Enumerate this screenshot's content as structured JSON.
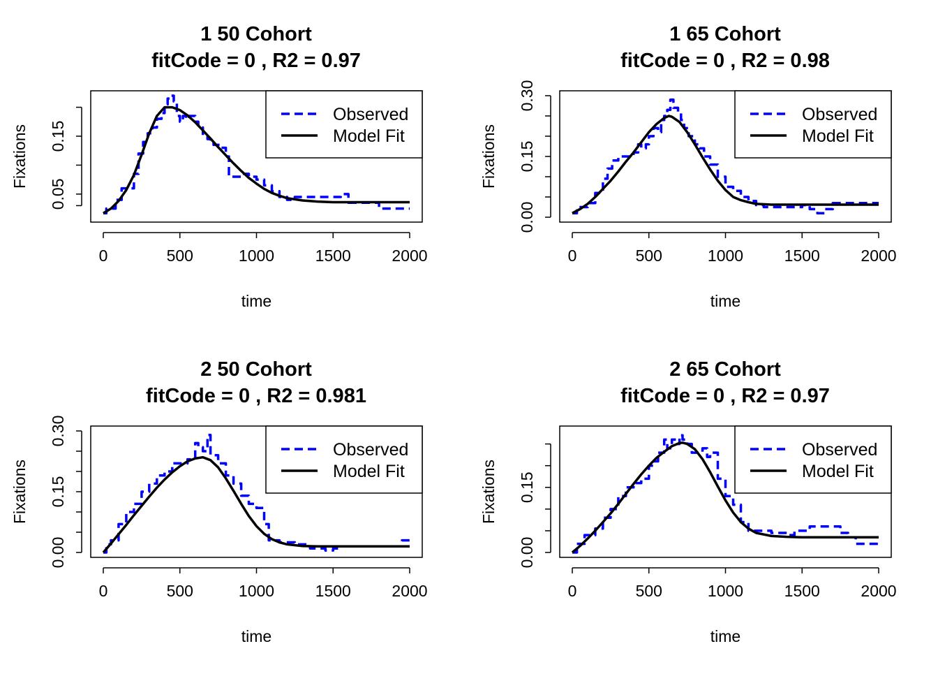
{
  "chart_data": [
    {
      "type": "line",
      "title": "1 50 Cohort",
      "subtitle": "fitCode =  0 , R2 =  0.97",
      "xlabel": "time",
      "ylabel": "Fixations",
      "xlim": [
        0,
        2000
      ],
      "ylim": [
        0.01,
        0.22
      ],
      "xticks": [
        0,
        500,
        1000,
        1500,
        2000
      ],
      "yticks": [
        0.03,
        0.05,
        0.1,
        0.15,
        0.2
      ],
      "yticklabels": [
        {
          "v": 0.05,
          "t": "0.05"
        },
        {
          "v": 0.15,
          "t": "0.15"
        }
      ],
      "legend": {
        "position": "top-right",
        "entries": [
          "Observed",
          "Model Fit"
        ]
      },
      "series": [
        {
          "name": "Observed",
          "color": "#0000ff",
          "style": "dashed",
          "x": [
            0,
            20,
            50,
            80,
            120,
            150,
            200,
            230,
            260,
            290,
            320,
            350,
            380,
            400,
            420,
            440,
            460,
            480,
            500,
            520,
            540,
            560,
            600,
            620,
            650,
            680,
            700,
            720,
            760,
            800,
            820,
            840,
            870,
            900,
            950,
            1000,
            1050,
            1100,
            1150,
            1200,
            1250,
            1300,
            1350,
            1400,
            1450,
            1500,
            1550,
            1600,
            1650,
            1700,
            1750,
            1800,
            1850,
            1900,
            1950,
            2000
          ],
          "y": [
            0.017,
            0.025,
            0.025,
            0.04,
            0.06,
            0.06,
            0.085,
            0.12,
            0.14,
            0.155,
            0.165,
            0.18,
            0.19,
            0.205,
            0.215,
            0.22,
            0.21,
            0.185,
            0.175,
            0.185,
            0.18,
            0.185,
            0.175,
            0.165,
            0.15,
            0.145,
            0.14,
            0.135,
            0.13,
            0.115,
            0.08,
            0.08,
            0.08,
            0.085,
            0.08,
            0.075,
            0.065,
            0.055,
            0.045,
            0.04,
            0.045,
            0.045,
            0.045,
            0.045,
            0.045,
            0.045,
            0.05,
            0.035,
            0.035,
            0.035,
            0.035,
            0.025,
            0.025,
            0.025,
            0.025,
            0.025
          ]
        },
        {
          "name": "Model Fit",
          "color": "#000000",
          "style": "solid",
          "x": [
            0,
            50,
            100,
            150,
            200,
            250,
            300,
            350,
            400,
            450,
            500,
            550,
            600,
            650,
            700,
            750,
            800,
            850,
            900,
            950,
            1000,
            1050,
            1100,
            1150,
            1200,
            1300,
            1400,
            1500,
            1600,
            1800,
            2000
          ],
          "y": [
            0.017,
            0.025,
            0.038,
            0.057,
            0.083,
            0.118,
            0.155,
            0.185,
            0.2,
            0.2,
            0.195,
            0.186,
            0.174,
            0.16,
            0.146,
            0.131,
            0.117,
            0.103,
            0.09,
            0.078,
            0.068,
            0.059,
            0.052,
            0.047,
            0.043,
            0.039,
            0.037,
            0.036,
            0.036,
            0.036,
            0.036
          ]
        }
      ]
    },
    {
      "type": "line",
      "title": "1 65 Cohort",
      "subtitle": "fitCode =  0 , R2 =  0.98",
      "xlabel": "time",
      "ylabel": "Fixations",
      "xlim": [
        0,
        2000
      ],
      "ylim": [
        0,
        0.3
      ],
      "xticks": [
        0,
        500,
        1000,
        1500,
        2000
      ],
      "yticks": [
        0,
        0.05,
        0.1,
        0.15,
        0.2,
        0.25,
        0.3
      ],
      "yticklabels": [
        {
          "v": 0,
          "t": "0.00"
        },
        {
          "v": 0.15,
          "t": "0.15"
        },
        {
          "v": 0.3,
          "t": "0.30"
        }
      ],
      "legend": {
        "position": "top-right",
        "entries": [
          "Observed",
          "Model Fit"
        ]
      },
      "series": [
        {
          "name": "Observed",
          "color": "#0000ff",
          "style": "dashed",
          "x": [
            0,
            30,
            100,
            150,
            200,
            230,
            260,
            300,
            350,
            400,
            430,
            450,
            480,
            500,
            530,
            560,
            580,
            600,
            620,
            640,
            660,
            690,
            710,
            730,
            760,
            800,
            830,
            860,
            900,
            950,
            1000,
            1050,
            1100,
            1150,
            1200,
            1250,
            1300,
            1400,
            1500,
            1550,
            1600,
            1650,
            1700,
            1800,
            1900,
            2000
          ],
          "y": [
            0.01,
            0.025,
            0.035,
            0.06,
            0.095,
            0.12,
            0.14,
            0.15,
            0.15,
            0.16,
            0.18,
            0.17,
            0.18,
            0.2,
            0.22,
            0.21,
            0.24,
            0.25,
            0.265,
            0.29,
            0.27,
            0.26,
            0.24,
            0.22,
            0.2,
            0.18,
            0.17,
            0.15,
            0.13,
            0.1,
            0.075,
            0.065,
            0.05,
            0.04,
            0.03,
            0.025,
            0.025,
            0.025,
            0.03,
            0.02,
            0.01,
            0.02,
            0.035,
            0.035,
            0.035,
            0.035
          ]
        },
        {
          "name": "Model Fit",
          "color": "#000000",
          "style": "solid",
          "x": [
            0,
            50,
            100,
            150,
            200,
            250,
            300,
            350,
            400,
            450,
            500,
            550,
            600,
            630,
            650,
            700,
            750,
            800,
            850,
            900,
            950,
            1000,
            1050,
            1100,
            1150,
            1200,
            1300,
            1400,
            1500,
            1700,
            2000
          ],
          "y": [
            0.01,
            0.02,
            0.033,
            0.05,
            0.07,
            0.09,
            0.113,
            0.137,
            0.16,
            0.185,
            0.21,
            0.23,
            0.245,
            0.25,
            0.248,
            0.235,
            0.21,
            0.18,
            0.148,
            0.118,
            0.09,
            0.067,
            0.05,
            0.042,
            0.037,
            0.033,
            0.031,
            0.031,
            0.031,
            0.031,
            0.031
          ]
        }
      ]
    },
    {
      "type": "line",
      "title": "2 50 Cohort",
      "subtitle": "fitCode =  0 , R2 =  0.981",
      "xlabel": "time",
      "ylabel": "Fixations",
      "xlim": [
        0,
        2000
      ],
      "ylim": [
        0,
        0.3
      ],
      "xticks": [
        0,
        500,
        1000,
        1500,
        2000
      ],
      "yticks": [
        0,
        0.05,
        0.1,
        0.15,
        0.2,
        0.25,
        0.3
      ],
      "yticklabels": [
        {
          "v": 0,
          "t": "0.00"
        },
        {
          "v": 0.15,
          "t": "0.15"
        },
        {
          "v": 0.3,
          "t": "0.30"
        }
      ],
      "legend": {
        "position": "top-right",
        "entries": [
          "Observed",
          "Model Fit"
        ]
      },
      "series": [
        {
          "name": "Observed",
          "color": "#0000ff",
          "style": "dashed",
          "x": [
            0,
            20,
            50,
            100,
            150,
            200,
            250,
            300,
            350,
            400,
            450,
            500,
            550,
            600,
            620,
            650,
            680,
            700,
            750,
            800,
            850,
            900,
            950,
            1000,
            1050,
            1080,
            1100,
            1150,
            1200,
            1250,
            1300,
            1350,
            1400,
            1450,
            1500,
            1550,
            1600,
            1700,
            1800,
            1900,
            1950,
            2000
          ],
          "y": [
            0,
            0.02,
            0.03,
            0.07,
            0.1,
            0.12,
            0.15,
            0.17,
            0.19,
            0.2,
            0.22,
            0.22,
            0.23,
            0.27,
            0.26,
            0.25,
            0.29,
            0.24,
            0.22,
            0.19,
            0.17,
            0.14,
            0.12,
            0.11,
            0.07,
            0.03,
            0.03,
            0.025,
            0.025,
            0.02,
            0.02,
            0.01,
            0.01,
            0.005,
            0.01,
            0.015,
            0.015,
            0.015,
            0.015,
            0.015,
            0.03,
            0.03
          ]
        },
        {
          "name": "Model Fit",
          "color": "#000000",
          "style": "solid",
          "x": [
            0,
            50,
            100,
            150,
            200,
            250,
            300,
            350,
            400,
            450,
            500,
            550,
            600,
            650,
            700,
            750,
            800,
            850,
            900,
            950,
            1000,
            1050,
            1100,
            1150,
            1200,
            1300,
            1400,
            1500,
            1700,
            2000
          ],
          "y": [
            0.0,
            0.022,
            0.045,
            0.068,
            0.092,
            0.115,
            0.138,
            0.16,
            0.18,
            0.198,
            0.213,
            0.225,
            0.232,
            0.235,
            0.228,
            0.21,
            0.183,
            0.152,
            0.12,
            0.09,
            0.065,
            0.046,
            0.033,
            0.025,
            0.02,
            0.016,
            0.015,
            0.015,
            0.015,
            0.015
          ]
        }
      ]
    },
    {
      "type": "line",
      "title": "2 65 Cohort",
      "subtitle": "fitCode =  0 , R2 =  0.97",
      "xlabel": "time",
      "ylabel": "Fixations",
      "xlim": [
        0,
        2000
      ],
      "ylim": [
        0,
        0.28
      ],
      "xticks": [
        0,
        500,
        1000,
        1500,
        2000
      ],
      "yticks": [
        0,
        0.05,
        0.1,
        0.15,
        0.2,
        0.25
      ],
      "yticklabels": [
        {
          "v": 0,
          "t": "0.00"
        },
        {
          "v": 0.15,
          "t": "0.15"
        }
      ],
      "legend": {
        "position": "top-right",
        "entries": [
          "Observed",
          "Model Fit"
        ]
      },
      "series": [
        {
          "name": "Observed",
          "color": "#0000ff",
          "style": "dashed",
          "x": [
            0,
            30,
            80,
            150,
            200,
            250,
            300,
            350,
            400,
            450,
            500,
            530,
            560,
            600,
            620,
            650,
            680,
            700,
            720,
            750,
            780,
            800,
            850,
            880,
            900,
            950,
            1000,
            1050,
            1100,
            1150,
            1200,
            1300,
            1400,
            1450,
            1500,
            1550,
            1600,
            1700,
            1750,
            1800,
            1850,
            1900,
            2000
          ],
          "y": [
            0,
            0.02,
            0.04,
            0.055,
            0.08,
            0.1,
            0.13,
            0.15,
            0.16,
            0.17,
            0.2,
            0.21,
            0.23,
            0.26,
            0.24,
            0.26,
            0.25,
            0.27,
            0.26,
            0.25,
            0.23,
            0.23,
            0.24,
            0.22,
            0.23,
            0.17,
            0.13,
            0.11,
            0.07,
            0.05,
            0.05,
            0.045,
            0.04,
            0.05,
            0.05,
            0.06,
            0.06,
            0.06,
            0.045,
            0.035,
            0.02,
            0.02,
            0.02
          ]
        },
        {
          "name": "Model Fit",
          "color": "#000000",
          "style": "solid",
          "x": [
            0,
            50,
            100,
            150,
            200,
            250,
            300,
            350,
            400,
            450,
            500,
            550,
            600,
            650,
            700,
            720,
            750,
            800,
            850,
            900,
            950,
            1000,
            1050,
            1100,
            1150,
            1200,
            1300,
            1400,
            1500,
            1700,
            2000
          ],
          "y": [
            0.0,
            0.015,
            0.032,
            0.05,
            0.07,
            0.09,
            0.112,
            0.135,
            0.158,
            0.18,
            0.2,
            0.218,
            0.232,
            0.245,
            0.252,
            0.253,
            0.25,
            0.238,
            0.215,
            0.185,
            0.152,
            0.12,
            0.092,
            0.07,
            0.055,
            0.045,
            0.038,
            0.036,
            0.035,
            0.035,
            0.035
          ]
        }
      ]
    }
  ]
}
